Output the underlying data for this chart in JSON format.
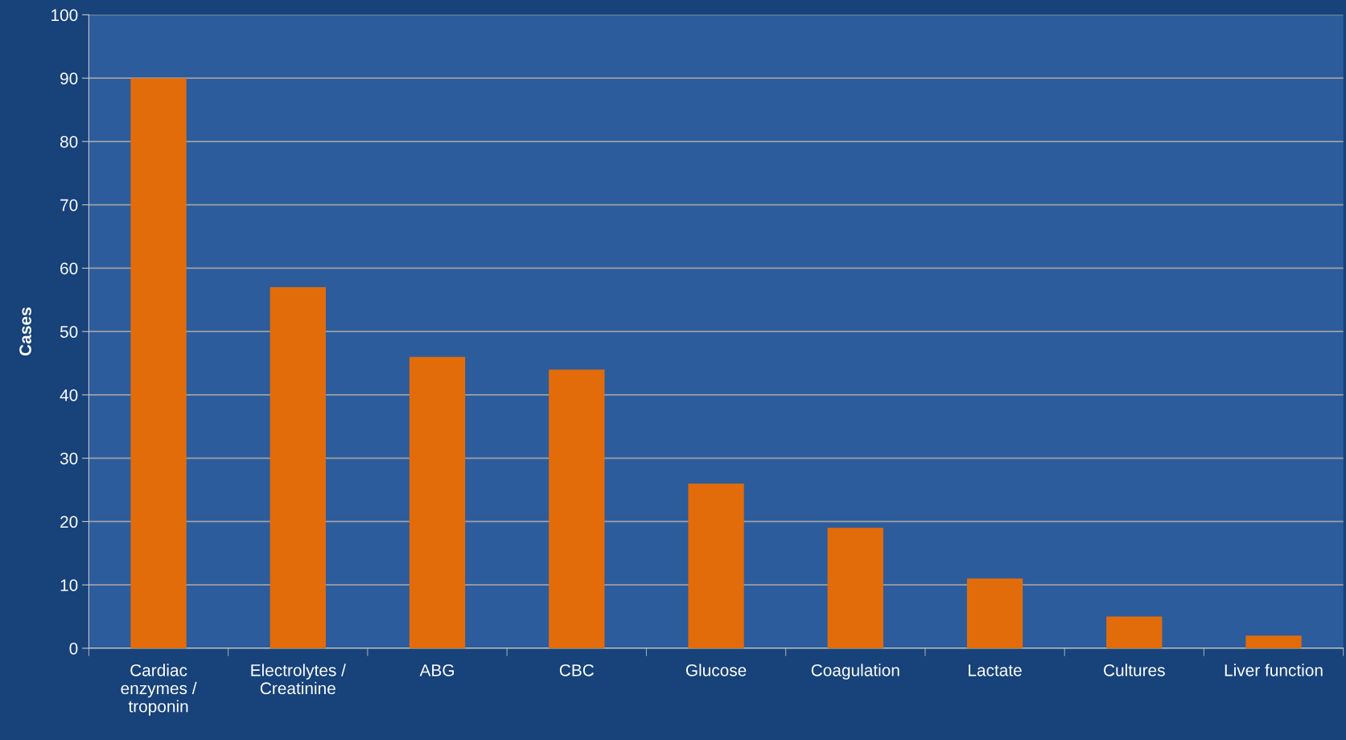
{
  "chart_data": {
    "type": "bar",
    "ylabel": "Cases",
    "categories": [
      "Cardiac\nenzymes /\ntroponin",
      "Electrolytes /\nCreatinine",
      "ABG",
      "CBC",
      "Glucose",
      "Coagulation",
      "Lactate",
      "Cultures",
      "Liver function"
    ],
    "values": [
      90,
      57,
      46,
      44,
      26,
      19,
      11,
      5,
      2
    ],
    "color": "#e36c0a",
    "ylim": [
      0,
      100
    ],
    "yticks": [
      0,
      10,
      20,
      30,
      40,
      50,
      60,
      70,
      80,
      90,
      100
    ],
    "grid": "y",
    "legend": false
  }
}
